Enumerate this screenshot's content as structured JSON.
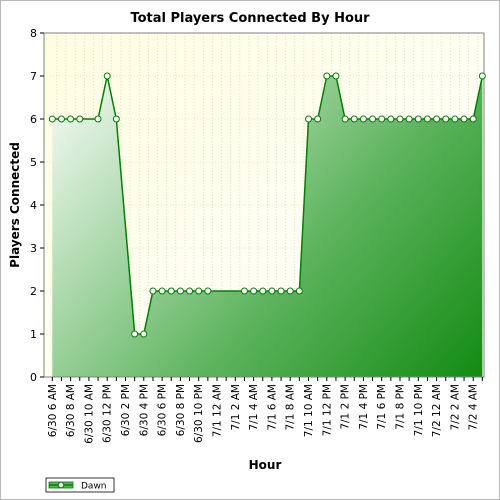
{
  "chart_data": {
    "type": "area",
    "title": "Total Players Connected By Hour",
    "xlabel": "Hour",
    "ylabel": "Players Connected",
    "ylim": [
      0,
      8
    ],
    "yticks": [
      "0",
      "1",
      "2",
      "3",
      "4",
      "5",
      "6",
      "7",
      "8"
    ],
    "grid": true,
    "legend_position": "bottom-left",
    "xtick_labels": [
      "6/30 6 AM",
      "6/30 8 AM",
      "6/30 10 AM",
      "6/30 12 PM",
      "6/30 2 PM",
      "6/30 4 PM",
      "6/30 6 PM",
      "6/30 8 PM",
      "6/30 10 PM",
      "7/1 12 AM",
      "7/1 2 AM",
      "7/1 4 AM",
      "7/1 6 AM",
      "7/1 8 AM",
      "7/1 10 AM",
      "7/1 12 PM",
      "7/1 2 PM",
      "7/1 4 PM",
      "7/1 6 PM",
      "7/1 8 PM",
      "7/1 10 PM",
      "7/2 12 AM",
      "7/2 2 AM",
      "7/2 4 AM"
    ],
    "series": [
      {
        "name": "Dawn",
        "color": "#008000",
        "x": [
          "6/30 6 AM",
          "6/30 7 AM",
          "6/30 8 AM",
          "6/30 9 AM",
          "6/30 11 AM",
          "6/30 12 PM",
          "6/30 1 PM",
          "6/30 3 PM",
          "6/30 4 PM",
          "6/30 5 PM",
          "6/30 6 PM",
          "6/30 7 PM",
          "6/30 8 PM",
          "6/30 9 PM",
          "6/30 10 PM",
          "6/30 11 PM",
          "7/1 3 AM",
          "7/1 4 AM",
          "7/1 5 AM",
          "7/1 6 AM",
          "7/1 7 AM",
          "7/1 8 AM",
          "7/1 9 AM",
          "7/1 10 AM",
          "7/1 11 AM",
          "7/1 12 PM",
          "7/1 1 PM",
          "7/1 2 PM",
          "7/1 3 PM",
          "7/1 4 PM",
          "7/1 5 PM",
          "7/1 6 PM",
          "7/1 7 PM",
          "7/1 8 PM",
          "7/1 9 PM",
          "7/1 10 PM",
          "7/1 11 PM",
          "7/2 12 AM",
          "7/2 1 AM",
          "7/2 2 AM",
          "7/2 3 AM",
          "7/2 4 AM",
          "7/2 5 AM"
        ],
        "values": [
          6,
          6,
          6,
          6,
          6,
          7,
          6,
          1,
          1,
          2,
          2,
          2,
          2,
          2,
          2,
          2,
          2,
          2,
          2,
          2,
          2,
          2,
          2,
          6,
          6,
          7,
          7,
          6,
          6,
          6,
          6,
          6,
          6,
          6,
          6,
          6,
          6,
          6,
          6,
          6,
          6,
          6,
          7
        ]
      }
    ]
  }
}
